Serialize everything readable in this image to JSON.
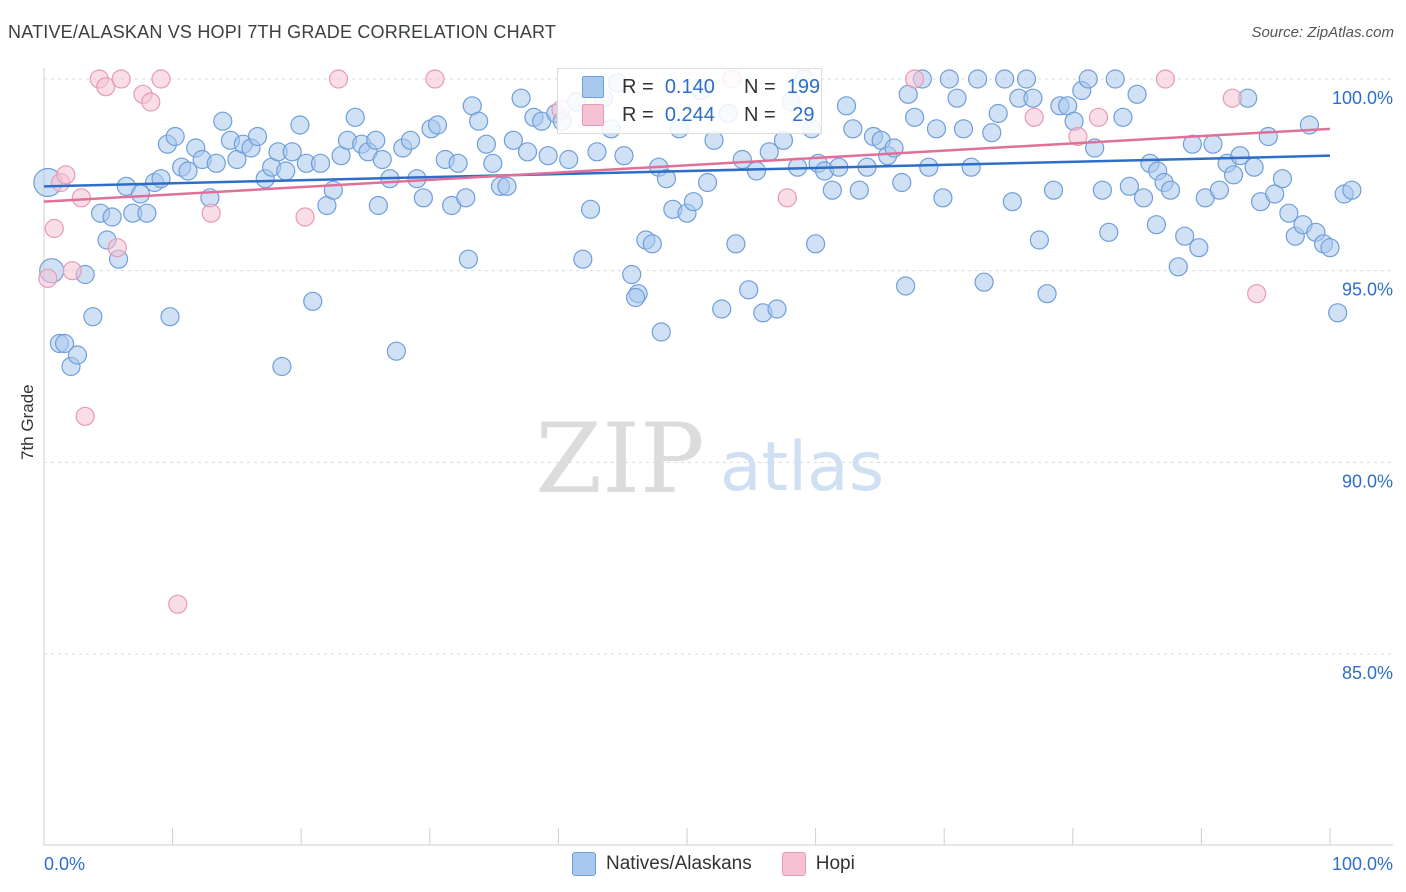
{
  "title": "NATIVE/ALASKAN VS HOPI 7TH GRADE CORRELATION CHART",
  "source": "Source: ZipAtlas.com",
  "watermark": {
    "zip": "ZIP",
    "atlas": "atlas"
  },
  "legend": {
    "series1": {
      "r_label": "R =",
      "r_value": "0.140",
      "n_label": "N =",
      "n_value": "199"
    },
    "series2": {
      "r_label": "R =",
      "r_value": "0.244",
      "n_label": "N =",
      "n_value": "29"
    }
  },
  "bottom_legend": {
    "series1": "Natives/Alaskans",
    "series2": "Hopi"
  },
  "colors": {
    "blue_fill": "#a9c8ee",
    "blue_stroke": "#6f9fd8",
    "blue_line": "#2e6ec7",
    "pink_fill": "#f6c2d3",
    "pink_stroke": "#e79ab6",
    "pink_line": "#e0709a",
    "tick_label": "#2e6ec7",
    "grid": "#d9d9d9"
  },
  "chart_data": {
    "type": "scatter",
    "title": "NATIVE/ALASKAN VS HOPI 7TH GRADE CORRELATION CHART",
    "xlabel": "",
    "ylabel": "7th Grade",
    "xlim": [
      0,
      100
    ],
    "ylim": [
      80.5,
      100.4
    ],
    "x_tick_labels": [
      "0.0%",
      "100.0%"
    ],
    "y_ticks": [
      {
        "value": 100,
        "label": "100.0%"
      },
      {
        "value": 95,
        "label": "95.0%"
      },
      {
        "value": 90,
        "label": "90.0%"
      },
      {
        "value": 85,
        "label": "85.0%"
      }
    ],
    "series": [
      {
        "name": "Natives/Alaskans",
        "trend": {
          "y_at_0": 97.2,
          "y_at_100": 98.0
        },
        "points": [
          [
            0.3,
            97.3
          ],
          [
            0.6,
            95.0
          ],
          [
            1.2,
            93.1
          ],
          [
            1.6,
            93.1
          ],
          [
            2.1,
            92.5
          ],
          [
            2.6,
            92.8
          ],
          [
            3.2,
            94.9
          ],
          [
            3.8,
            93.8
          ],
          [
            4.4,
            96.5
          ],
          [
            4.9,
            95.8
          ],
          [
            5.3,
            96.4
          ],
          [
            5.8,
            95.3
          ],
          [
            6.4,
            97.2
          ],
          [
            6.9,
            96.5
          ],
          [
            7.5,
            97.0
          ],
          [
            8.0,
            96.5
          ],
          [
            8.6,
            97.3
          ],
          [
            9.1,
            97.4
          ],
          [
            9.6,
            98.3
          ],
          [
            10.2,
            98.5
          ],
          [
            10.7,
            97.7
          ],
          [
            11.2,
            97.6
          ],
          [
            11.8,
            98.2
          ],
          [
            12.3,
            97.9
          ],
          [
            12.9,
            96.9
          ],
          [
            13.4,
            97.8
          ],
          [
            13.9,
            98.9
          ],
          [
            14.5,
            98.4
          ],
          [
            15.0,
            97.9
          ],
          [
            15.5,
            98.3
          ],
          [
            16.1,
            98.2
          ],
          [
            16.6,
            98.5
          ],
          [
            17.2,
            97.4
          ],
          [
            17.7,
            97.7
          ],
          [
            18.2,
            98.1
          ],
          [
            18.8,
            97.6
          ],
          [
            19.3,
            98.1
          ],
          [
            19.9,
            98.8
          ],
          [
            20.4,
            97.8
          ],
          [
            20.9,
            94.2
          ],
          [
            21.5,
            97.8
          ],
          [
            22.0,
            96.7
          ],
          [
            22.5,
            97.1
          ],
          [
            23.1,
            98.0
          ],
          [
            23.6,
            98.4
          ],
          [
            24.2,
            99.0
          ],
          [
            24.7,
            98.3
          ],
          [
            25.2,
            98.1
          ],
          [
            25.8,
            98.4
          ],
          [
            26.3,
            97.9
          ],
          [
            26.9,
            97.4
          ],
          [
            27.4,
            92.9
          ],
          [
            27.9,
            98.2
          ],
          [
            28.5,
            98.4
          ],
          [
            29.0,
            97.4
          ],
          [
            29.5,
            96.9
          ],
          [
            30.1,
            98.7
          ],
          [
            30.6,
            98.8
          ],
          [
            31.2,
            97.9
          ],
          [
            31.7,
            96.7
          ],
          [
            32.2,
            97.8
          ],
          [
            32.8,
            96.9
          ],
          [
            33.3,
            99.3
          ],
          [
            33.8,
            98.9
          ],
          [
            34.4,
            98.3
          ],
          [
            34.9,
            97.8
          ],
          [
            35.5,
            97.2
          ],
          [
            36.0,
            97.2
          ],
          [
            36.5,
            98.4
          ],
          [
            37.1,
            99.5
          ],
          [
            37.6,
            98.1
          ],
          [
            38.1,
            99.0
          ],
          [
            38.7,
            98.9
          ],
          [
            39.2,
            98.0
          ],
          [
            39.8,
            99.1
          ],
          [
            40.3,
            98.9
          ],
          [
            40.8,
            97.9
          ],
          [
            41.4,
            99.4
          ],
          [
            41.9,
            95.3
          ],
          [
            42.5,
            96.6
          ],
          [
            43.0,
            98.1
          ],
          [
            43.5,
            99.5
          ],
          [
            44.1,
            98.7
          ],
          [
            44.6,
            99.9
          ],
          [
            45.1,
            98.0
          ],
          [
            45.7,
            94.9
          ],
          [
            46.2,
            94.4
          ],
          [
            46.8,
            95.8
          ],
          [
            47.3,
            95.7
          ],
          [
            47.8,
            97.7
          ],
          [
            48.4,
            97.4
          ],
          [
            48.9,
            96.6
          ],
          [
            49.4,
            98.7
          ],
          [
            50.0,
            96.5
          ],
          [
            50.5,
            96.8
          ],
          [
            51.1,
            99.7
          ],
          [
            51.6,
            97.3
          ],
          [
            52.1,
            98.4
          ],
          [
            52.7,
            94.0
          ],
          [
            53.2,
            99.1
          ],
          [
            53.8,
            95.7
          ],
          [
            54.3,
            97.9
          ],
          [
            54.8,
            94.5
          ],
          [
            55.4,
            97.6
          ],
          [
            55.9,
            93.9
          ],
          [
            56.4,
            98.1
          ],
          [
            57.0,
            94.0
          ],
          [
            57.5,
            98.4
          ],
          [
            58.1,
            99.4
          ],
          [
            58.6,
            97.7
          ],
          [
            59.1,
            100.0
          ],
          [
            59.7,
            98.7
          ],
          [
            60.2,
            97.8
          ],
          [
            60.7,
            97.6
          ],
          [
            61.3,
            97.1
          ],
          [
            61.8,
            97.7
          ],
          [
            62.4,
            99.3
          ],
          [
            62.9,
            98.7
          ],
          [
            63.4,
            97.1
          ],
          [
            64.0,
            97.7
          ],
          [
            64.5,
            98.5
          ],
          [
            65.1,
            98.4
          ],
          [
            65.6,
            98.0
          ],
          [
            66.1,
            98.2
          ],
          [
            66.7,
            97.3
          ],
          [
            67.2,
            99.6
          ],
          [
            67.7,
            99.0
          ],
          [
            68.3,
            100.0
          ],
          [
            68.8,
            97.7
          ],
          [
            69.4,
            98.7
          ],
          [
            69.9,
            96.9
          ],
          [
            70.4,
            100.0
          ],
          [
            71.0,
            99.5
          ],
          [
            71.5,
            98.7
          ],
          [
            72.1,
            97.7
          ],
          [
            72.6,
            100.0
          ],
          [
            73.1,
            94.7
          ],
          [
            73.7,
            98.6
          ],
          [
            74.2,
            99.1
          ],
          [
            74.7,
            100.0
          ],
          [
            75.3,
            96.8
          ],
          [
            75.8,
            99.5
          ],
          [
            76.4,
            100.0
          ],
          [
            76.9,
            99.5
          ],
          [
            77.4,
            95.8
          ],
          [
            78.0,
            94.4
          ],
          [
            78.5,
            97.1
          ],
          [
            79.0,
            99.3
          ],
          [
            79.6,
            99.3
          ],
          [
            80.1,
            98.9
          ],
          [
            80.7,
            99.7
          ],
          [
            81.2,
            100.0
          ],
          [
            81.7,
            98.2
          ],
          [
            82.3,
            97.1
          ],
          [
            82.8,
            96.0
          ],
          [
            83.3,
            100.0
          ],
          [
            83.9,
            99.0
          ],
          [
            84.4,
            97.2
          ],
          [
            85.0,
            99.6
          ],
          [
            85.5,
            96.9
          ],
          [
            86.0,
            97.8
          ],
          [
            86.6,
            97.6
          ],
          [
            87.1,
            97.3
          ],
          [
            87.6,
            97.1
          ],
          [
            88.2,
            95.1
          ],
          [
            88.7,
            95.9
          ],
          [
            89.3,
            98.3
          ],
          [
            89.8,
            95.6
          ],
          [
            90.3,
            96.9
          ],
          [
            90.9,
            98.3
          ],
          [
            91.4,
            97.1
          ],
          [
            92.0,
            97.8
          ],
          [
            92.5,
            97.5
          ],
          [
            93.0,
            98.0
          ],
          [
            93.6,
            99.5
          ],
          [
            94.1,
            97.7
          ],
          [
            94.6,
            96.8
          ],
          [
            95.2,
            98.5
          ],
          [
            95.7,
            97.0
          ],
          [
            96.3,
            97.4
          ],
          [
            96.8,
            96.5
          ],
          [
            97.3,
            95.9
          ],
          [
            97.9,
            96.2
          ],
          [
            98.4,
            98.8
          ],
          [
            98.9,
            96.0
          ],
          [
            99.5,
            95.7
          ],
          [
            100.0,
            95.6
          ],
          [
            100.6,
            93.9
          ],
          [
            101.1,
            97.0
          ],
          [
            101.7,
            97.1
          ],
          [
            26.0,
            96.7
          ],
          [
            60.0,
            95.7
          ],
          [
            9.8,
            93.8
          ],
          [
            46.0,
            94.3
          ],
          [
            18.5,
            92.5
          ],
          [
            48.0,
            93.4
          ],
          [
            86.5,
            96.2
          ],
          [
            33.0,
            95.3
          ],
          [
            67.0,
            94.6
          ]
        ]
      },
      {
        "name": "Hopi",
        "trend": {
          "y_at_0": 96.8,
          "y_at_100": 98.7
        },
        "points": [
          [
            0.3,
            94.8
          ],
          [
            0.8,
            96.1
          ],
          [
            1.3,
            97.3
          ],
          [
            1.7,
            97.5
          ],
          [
            2.2,
            95.0
          ],
          [
            2.9,
            96.9
          ],
          [
            3.2,
            91.2
          ],
          [
            4.3,
            100.0
          ],
          [
            4.8,
            99.8
          ],
          [
            5.7,
            95.6
          ],
          [
            6.0,
            100.0
          ],
          [
            7.7,
            99.6
          ],
          [
            8.3,
            99.4
          ],
          [
            9.1,
            100.0
          ],
          [
            10.4,
            86.3
          ],
          [
            13.0,
            96.5
          ],
          [
            20.3,
            96.4
          ],
          [
            22.9,
            100.0
          ],
          [
            30.4,
            100.0
          ],
          [
            40.2,
            99.2
          ],
          [
            53.5,
            100.0
          ],
          [
            57.8,
            96.9
          ],
          [
            67.7,
            100.0
          ],
          [
            77.0,
            99.0
          ],
          [
            80.4,
            98.5
          ],
          [
            82.0,
            99.0
          ],
          [
            87.2,
            100.0
          ],
          [
            92.4,
            99.5
          ],
          [
            94.3,
            94.4
          ]
        ]
      }
    ]
  }
}
